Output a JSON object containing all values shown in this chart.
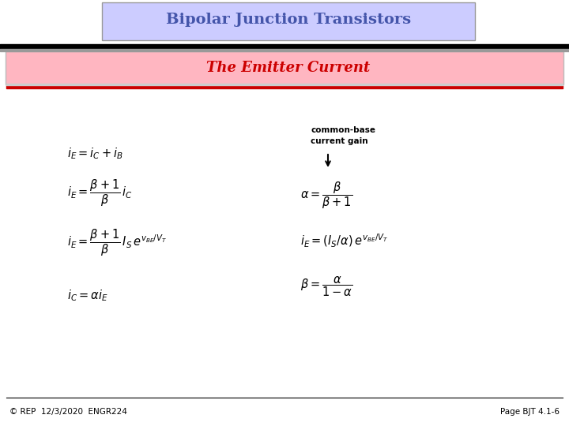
{
  "title": "Bipolar Junction Transistors",
  "subtitle": "The Emitter Current",
  "footer_left": "© REP  12/3/2020  ENGR224",
  "footer_right": "Page BJT 4.1-6",
  "annotation_label": "common-base\ncurrent gain",
  "title_bg": "#ccccff",
  "subtitle_bg": "#ffb6c1",
  "bg_color": "#ffffff",
  "title_color": "#4455aa",
  "subtitle_color": "#cc0000",
  "eq1": "$i_E = i_C + i_B$",
  "eq2": "$i_E = \\dfrac{\\beta+1}{\\beta}\\,i_C$",
  "eq3": "$i_E = \\dfrac{\\beta+1}{\\beta}\\,I_S\\,e^{v_{BE}/V_T}$",
  "eq4": "$i_C = \\alpha i_E$",
  "eq5": "$\\alpha = \\dfrac{\\beta}{\\beta+1}$",
  "eq6": "$i_E = (I_S/\\alpha)\\,e^{v_{BE}/V_T}$",
  "eq7": "$\\beta = \\dfrac{\\alpha}{1-\\alpha}$"
}
